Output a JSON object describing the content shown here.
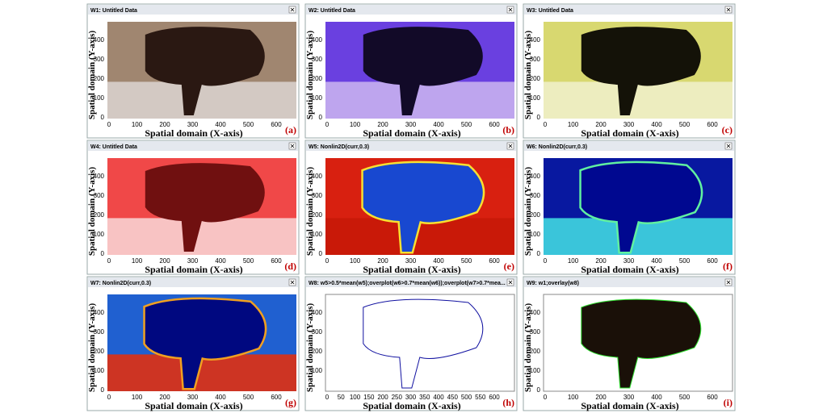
{
  "panels": [
    {
      "title": "W1: Untitled Data",
      "y_label": "Spatial domain (Y-axis)",
      "x_label": "Spatial domain (X-axis)",
      "letter": "(a)",
      "xticks": [
        0,
        100,
        200,
        300,
        400,
        500,
        600
      ],
      "yticks": [
        0,
        100,
        200,
        300,
        400
      ]
    },
    {
      "title": "W2: Untitled Data",
      "y_label": "Spatial domain (Y-axis)",
      "x_label": "Spatial domain (X-axis)",
      "letter": "(b)",
      "xticks": [
        0,
        100,
        200,
        300,
        400,
        500,
        600
      ],
      "yticks": [
        0,
        100,
        200,
        300,
        400
      ]
    },
    {
      "title": "W3: Untitled Data",
      "y_label": "Spatial domain (Y-axis)",
      "x_label": "Spatial domain (X-axis)",
      "letter": "(c)",
      "xticks": [
        0,
        100,
        200,
        300,
        400,
        500,
        600
      ],
      "yticks": [
        0,
        100,
        200,
        300,
        400
      ]
    },
    {
      "title": "W4: Untitled Data",
      "y_label": "Spatial domain (Y-axis)",
      "x_label": "Spatial domain (X-axis)",
      "letter": "(d)",
      "xticks": [
        0,
        100,
        200,
        300,
        400,
        500,
        600
      ],
      "yticks": [
        0,
        100,
        200,
        300,
        400
      ]
    },
    {
      "title": "W5: Nonlin2D(curr,0.3)",
      "y_label": "Spatial domain (Y-axis)",
      "x_label": "Spatial domain (X-axis)",
      "letter": "(e)",
      "xticks": [
        0,
        100,
        200,
        300,
        400,
        500,
        600
      ],
      "yticks": [
        0,
        100,
        200,
        300,
        400
      ]
    },
    {
      "title": "W6: Nonlin2D(curr,0.3)",
      "y_label": "Spatial domain (Y-axis)",
      "x_label": "Spatial domain (X-axis)",
      "letter": "(f)",
      "xticks": [
        0,
        100,
        200,
        300,
        400,
        500,
        600
      ],
      "yticks": [
        0,
        100,
        200,
        300,
        400
      ]
    },
    {
      "title": "W7: Nonlin2D(curr,0.3)",
      "y_label": "Spatial domain (Y-axis)",
      "x_label": "Spatial domain (X-axis)",
      "letter": "(g)",
      "xticks": [
        0,
        100,
        200,
        300,
        400,
        500,
        600
      ],
      "yticks": [
        0,
        100,
        200,
        300,
        400
      ]
    },
    {
      "title": "W8: w5>0.5*mean(w5);overplot(w6>0.7*mean(w6));overplot(w7>0.7*mea...",
      "y_label": "Spatial domain (Y-axis)",
      "x_label": "Spatial domain (X-axis)",
      "letter": "(h)",
      "xticks": [
        0,
        50,
        100,
        150,
        200,
        250,
        300,
        350,
        400,
        450,
        500,
        550,
        600
      ],
      "yticks": [
        100,
        200,
        300,
        400
      ]
    },
    {
      "title": "W9: w1;overlay(w8)",
      "y_label": "Spatial domain (Y-axis)",
      "x_label": "Spatial domain (X-axis)",
      "letter": "(i)",
      "xticks": [
        0,
        100,
        200,
        300,
        400,
        500,
        600
      ],
      "yticks": [
        0,
        100,
        200,
        300,
        400
      ]
    }
  ]
}
